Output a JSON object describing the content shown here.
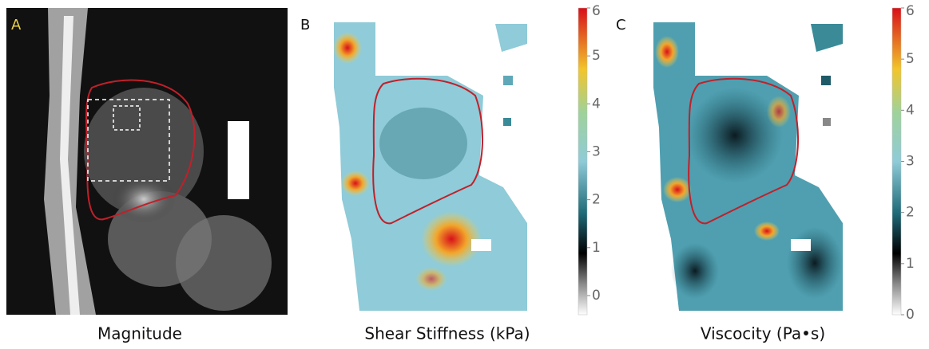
{
  "panels": [
    {
      "letter": "A",
      "caption": "Magnitude"
    },
    {
      "letter": "B",
      "caption": "Shear Stiffness (kPa)",
      "colorbar": {
        "lim": [
          -0.4,
          6
        ],
        "ticks": [
          0,
          1,
          2,
          3,
          4,
          5,
          6
        ]
      }
    },
    {
      "letter": "C",
      "caption": "Viscocity (Pa•s)",
      "colorbar": {
        "lim": [
          0,
          6
        ],
        "ticks": [
          0,
          1,
          2,
          3,
          4,
          5,
          6
        ]
      }
    }
  ]
}
